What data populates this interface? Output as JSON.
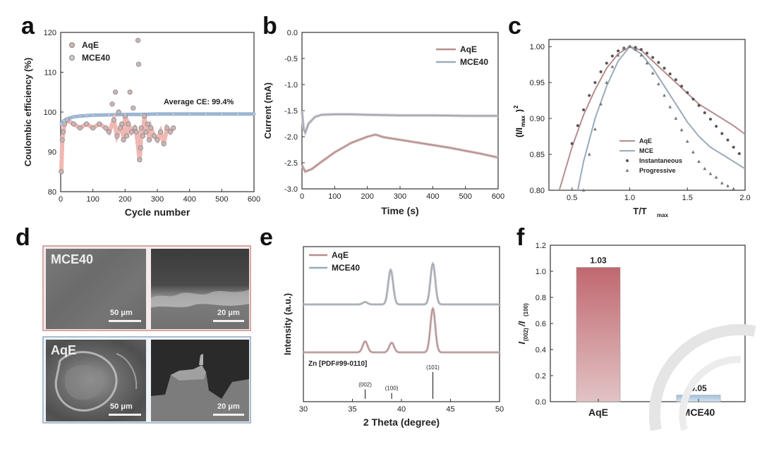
{
  "panels": {
    "a": "a",
    "b": "b",
    "c": "c",
    "d": "d",
    "e": "e",
    "f": "f"
  },
  "chart_data": [
    {
      "id": "a",
      "type": "scatter",
      "xlabel": "Cycle number",
      "ylabel": "Coulombic efficiency (%)",
      "xlim": [
        0,
        600
      ],
      "ylim": [
        80,
        120
      ],
      "xticks": [
        0,
        100,
        200,
        300,
        400,
        500,
        600
      ],
      "yticks": [
        80,
        90,
        100,
        110,
        120
      ],
      "legend_position": "top-left",
      "annotation": "Average CE: 99.4%",
      "series": [
        {
          "name": "AqE",
          "color": "#e7a4a4",
          "points": [
            [
              2,
              85
            ],
            [
              5,
              93
            ],
            [
              8,
              95
            ],
            [
              12,
              97
            ],
            [
              20,
              98
            ],
            [
              40,
              97
            ],
            [
              60,
              96
            ],
            [
              80,
              97
            ],
            [
              100,
              96
            ],
            [
              120,
              97
            ],
            [
              140,
              96
            ],
            [
              150,
              95
            ],
            [
              160,
              102
            ],
            [
              165,
              98
            ],
            [
              170,
              105
            ],
            [
              175,
              94
            ],
            [
              180,
              100
            ],
            [
              185,
              96
            ],
            [
              190,
              97
            ],
            [
              195,
              93
            ],
            [
              200,
              99
            ],
            [
              205,
              94
            ],
            [
              210,
              97
            ],
            [
              215,
              105
            ],
            [
              220,
              95
            ],
            [
              225,
              101
            ],
            [
              230,
              96
            ],
            [
              235,
              95
            ],
            [
              240,
              118
            ],
            [
              242,
              112
            ],
            [
              245,
              88
            ],
            [
              248,
              91
            ],
            [
              250,
              96
            ],
            [
              255,
              94
            ],
            [
              260,
              99
            ],
            [
              265,
              95
            ],
            [
              270,
              97
            ],
            [
              275,
              93
            ],
            [
              280,
              96
            ],
            [
              290,
              94
            ],
            [
              300,
              93
            ],
            [
              310,
              95
            ],
            [
              320,
              92
            ],
            [
              330,
              96
            ],
            [
              340,
              95
            ],
            [
              350,
              96
            ]
          ]
        },
        {
          "name": "MCE40",
          "color": "#9cb6d4",
          "points": [
            [
              2,
              97
            ],
            [
              10,
              97.8
            ],
            [
              20,
              98.3
            ],
            [
              40,
              98.8
            ],
            [
              60,
              99
            ],
            [
              80,
              99.1
            ],
            [
              100,
              99.2
            ],
            [
              150,
              99.3
            ],
            [
              200,
              99.4
            ],
            [
              250,
              99.4
            ],
            [
              300,
              99.5
            ],
            [
              350,
              99.5
            ],
            [
              400,
              99.5
            ],
            [
              450,
              99.5
            ],
            [
              500,
              99.5
            ],
            [
              550,
              99.5
            ],
            [
              600,
              99.5
            ]
          ]
        }
      ]
    },
    {
      "id": "b",
      "type": "line",
      "xlabel": "Time (s)",
      "ylabel": "Current (mA)",
      "xlim": [
        0,
        600
      ],
      "ylim": [
        -3.0,
        0.0
      ],
      "xticks": [
        0,
        100,
        200,
        300,
        400,
        500,
        600
      ],
      "yticks": [
        0.0,
        -0.5,
        -1.0,
        -1.5,
        -2.0,
        -2.5,
        -3.0
      ],
      "legend_position": "top-right",
      "series": [
        {
          "name": "AqE",
          "color": "#b88d8d",
          "x": [
            0,
            10,
            30,
            60,
            100,
            150,
            200,
            225,
            250,
            300,
            350,
            400,
            450,
            500,
            550,
            600
          ],
          "y": [
            -2.55,
            -2.67,
            -2.62,
            -2.48,
            -2.3,
            -2.12,
            -2.0,
            -1.96,
            -2.01,
            -2.06,
            -2.11,
            -2.16,
            -2.21,
            -2.27,
            -2.33,
            -2.4
          ]
        },
        {
          "name": "MCE40",
          "color": "#9aaabb",
          "x": [
            0,
            5,
            10,
            20,
            40,
            60,
            100,
            150,
            200,
            300,
            400,
            500,
            600
          ],
          "y": [
            -1.5,
            -1.85,
            -1.92,
            -1.75,
            -1.62,
            -1.58,
            -1.57,
            -1.57,
            -1.58,
            -1.59,
            -1.59,
            -1.6,
            -1.6
          ]
        }
      ]
    },
    {
      "id": "c",
      "type": "line",
      "xlabel_main": "T/T",
      "xlabel_sub": "max",
      "ylabel_main": "(I/I",
      "ylabel_sub": "max",
      "ylabel_tail": ")",
      "ylabel_sup": "2",
      "xlim": [
        0.3,
        2.0
      ],
      "ylim": [
        0.8,
        1.01
      ],
      "xticks": [
        0.5,
        1.0,
        1.5,
        2.0
      ],
      "yticks": [
        0.8,
        0.85,
        0.9,
        0.95,
        1.0
      ],
      "legend_position": "bottom-right",
      "series": [
        {
          "name": "AqE",
          "color": "#b88d8d",
          "style": "line",
          "x": [
            0.39,
            0.5,
            0.6,
            0.7,
            0.8,
            0.9,
            1.0,
            1.1,
            1.2,
            1.3,
            1.4,
            1.5,
            1.6,
            1.7,
            1.8,
            1.9,
            2.0
          ],
          "y": [
            0.8,
            0.86,
            0.905,
            0.94,
            0.97,
            0.99,
            1.0,
            0.995,
            0.98,
            0.965,
            0.95,
            0.935,
            0.92,
            0.91,
            0.9,
            0.89,
            0.878
          ]
        },
        {
          "name": "MCE",
          "color": "#9aaabb",
          "style": "line",
          "x": [
            0.55,
            0.6,
            0.7,
            0.8,
            0.9,
            1.0,
            1.1,
            1.2,
            1.3,
            1.4,
            1.5,
            1.6,
            1.7,
            1.8,
            1.9,
            2.0
          ],
          "y": [
            0.8,
            0.84,
            0.9,
            0.945,
            0.98,
            1.0,
            0.99,
            0.97,
            0.945,
            0.92,
            0.895,
            0.875,
            0.86,
            0.85,
            0.84,
            0.83
          ]
        },
        {
          "name": "Instantaneous",
          "color": "#555555",
          "style": "dots",
          "x": [
            0.5,
            0.55,
            0.6,
            0.65,
            0.7,
            0.75,
            0.8,
            0.85,
            0.9,
            0.95,
            1.0,
            1.05,
            1.1,
            1.15,
            1.2,
            1.25,
            1.3,
            1.35,
            1.4,
            1.45,
            1.5,
            1.55,
            1.6,
            1.65,
            1.7,
            1.75,
            1.8,
            1.85,
            1.9,
            1.95
          ],
          "y": [
            0.865,
            0.89,
            0.912,
            0.932,
            0.95,
            0.965,
            0.977,
            0.987,
            0.994,
            0.998,
            1.0,
            0.999,
            0.996,
            0.991,
            0.985,
            0.978,
            0.97,
            0.962,
            0.954,
            0.945,
            0.936,
            0.927,
            0.918,
            0.908,
            0.899,
            0.889,
            0.879,
            0.87,
            0.86,
            0.851
          ]
        },
        {
          "name": "Progressive",
          "color": "#555555",
          "style": "triangles",
          "x": [
            0.6,
            0.65,
            0.7,
            0.75,
            0.8,
            0.85,
            0.9,
            0.95,
            1.0,
            1.05,
            1.1,
            1.15,
            1.2,
            1.25,
            1.3,
            1.35,
            1.4,
            1.45,
            1.5,
            1.55,
            1.6,
            1.65,
            1.7,
            1.75,
            1.8,
            1.85,
            1.9
          ],
          "y": [
            0.8,
            0.85,
            0.885,
            0.92,
            0.95,
            0.972,
            0.988,
            0.997,
            1.0,
            0.996,
            0.988,
            0.977,
            0.963,
            0.948,
            0.932,
            0.916,
            0.9,
            0.884,
            0.868,
            0.853,
            0.84,
            0.83,
            0.823,
            0.818,
            0.81,
            0.806,
            0.802
          ]
        }
      ]
    },
    {
      "id": "e",
      "type": "line",
      "xlabel": "2 Theta (degree)",
      "ylabel": "Intensity (a.u.)",
      "xlim": [
        30,
        50
      ],
      "xticks": [
        30,
        35,
        40,
        45,
        50
      ],
      "legend_position": "top-left",
      "reference_label": "Zn [PDF#99-0110]",
      "series": [
        {
          "name": "AqE",
          "color": "#b88d8d",
          "peaks": [
            [
              36.3,
              0.25
            ],
            [
              39.0,
              0.22
            ],
            [
              43.2,
              1.0
            ]
          ]
        },
        {
          "name": "MCE40",
          "color": "#9aaabb",
          "peaks": [
            [
              36.3,
              0.05
            ],
            [
              38.9,
              0.72
            ],
            [
              43.2,
              0.85
            ]
          ]
        }
      ],
      "reference_peaks": [
        {
          "x": 36.3,
          "h": 0.35,
          "label": "(002)"
        },
        {
          "x": 39.0,
          "h": 0.22,
          "label": "(100)"
        },
        {
          "x": 43.2,
          "h": 1.0,
          "label": "(101)"
        },
        {
          "x": 54.3,
          "h": 0.0,
          "label": ""
        }
      ]
    },
    {
      "id": "f",
      "type": "bar",
      "categories": [
        "AqE",
        "MCE40"
      ],
      "values": [
        1.03,
        0.05
      ],
      "value_labels": [
        "1.03",
        "0.05"
      ],
      "colors": [
        "#c47a80",
        "#a8c4dc"
      ],
      "ylim": [
        0,
        1.2
      ],
      "yticks": [
        "0.0",
        "0.2",
        "0.4",
        "0.6",
        "0.8",
        "1.0",
        "1.2"
      ],
      "ylabel_main": "I",
      "ylabel_sub1": "(002)",
      "ylabel_mid": "/I",
      "ylabel_sub2": "(100)"
    }
  ],
  "sem_panel": {
    "top_label": "MCE40",
    "bottom_label": "AqE",
    "scale_left": "50 μm",
    "scale_right": "20 μm"
  }
}
